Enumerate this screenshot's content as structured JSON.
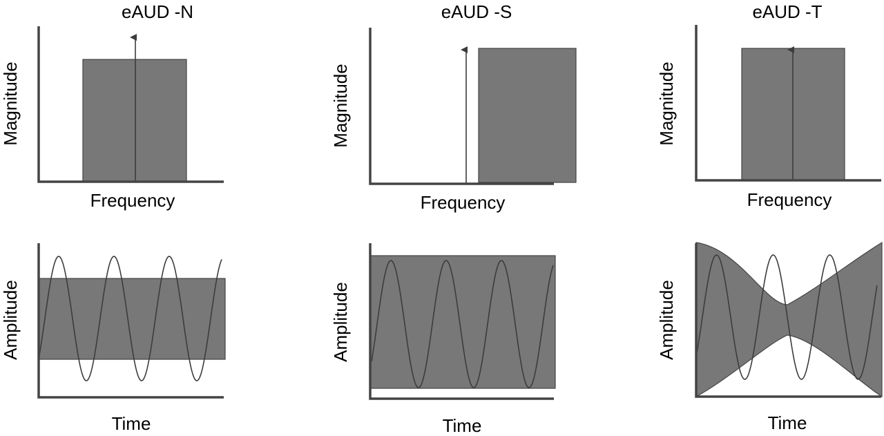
{
  "panels": [
    {
      "title": "eAUD -N",
      "frequency": {
        "ylabel": "Magnitude",
        "xlabel": "Frequency"
      },
      "time": {
        "ylabel": "Amplitude",
        "xlabel": "Time"
      }
    },
    {
      "title": "eAUD -S",
      "frequency": {
        "ylabel": "Magnitude",
        "xlabel": "Frequency"
      },
      "time": {
        "ylabel": "Amplitude",
        "xlabel": "Time"
      }
    },
    {
      "title": "eAUD -T",
      "frequency": {
        "ylabel": "Magnitude",
        "xlabel": "Frequency"
      },
      "time": {
        "ylabel": "Amplitude",
        "xlabel": "Time"
      }
    }
  ],
  "colors": {
    "band": "#787878",
    "axis": "#444444",
    "line": "#3c3c3c"
  }
}
